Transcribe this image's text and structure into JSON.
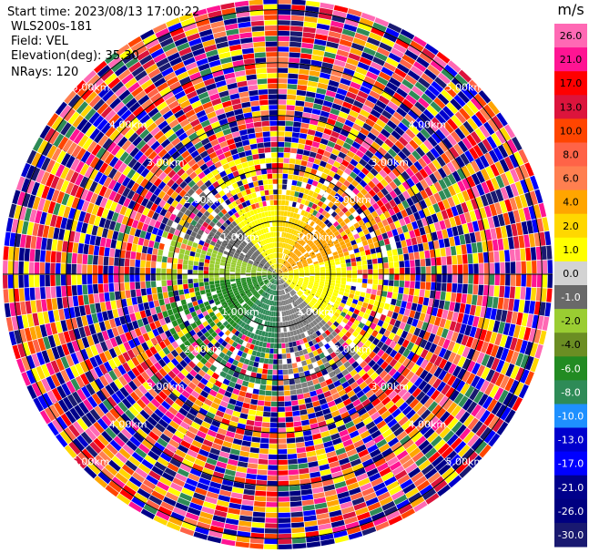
{
  "header": {
    "start_time": "Start time: 2023/08/13 17:00:22",
    "instrument": "WLS200s-181",
    "field": "Field: VEL",
    "elevation": "Elevation(deg): 35.30",
    "nrays": "NRays: 120"
  },
  "chart_data": {
    "type": "heatmap",
    "projection": "polar-ppi",
    "range_rings_km": [
      1,
      2,
      3,
      4,
      5
    ],
    "ring_labels": [
      "1.00km",
      "2.00km",
      "3.00km",
      "4.00km",
      "5.00km"
    ],
    "max_range_km": 5.2,
    "n_rays": 120,
    "n_gates": 52,
    "colorbar": {
      "unit": "m/s",
      "ticks": [
        "26.0",
        "21.0",
        "17.0",
        "13.0",
        "10.0",
        "8.0",
        "6.0",
        "4.0",
        "2.0",
        "1.0",
        "0.0",
        "-1.0",
        "-2.0",
        "-4.0",
        "-6.0",
        "-8.0",
        "-10.0",
        "-13.0",
        "-17.0",
        "-21.0",
        "-26.0",
        "-30.0"
      ],
      "colors": [
        "#ff69b4",
        "#ff1493",
        "#ff0000",
        "#dc143c",
        "#ff4500",
        "#ff6347",
        "#ff7f50",
        "#ffa500",
        "#ffd700",
        "#ffff00",
        "#d3d3d3",
        "#696969",
        "#9acd32",
        "#6b8e23",
        "#228b22",
        "#2e8b57",
        "#1e90ff",
        "#0000cd",
        "#0000ff",
        "#00008b",
        "#000080",
        "#191970"
      ]
    },
    "near_field_sectors": [
      {
        "az_from": 0,
        "az_to": 30,
        "color": "#ffd700"
      },
      {
        "az_from": 30,
        "az_to": 75,
        "color": "#ffa500"
      },
      {
        "az_from": 75,
        "az_to": 135,
        "color": "#ffff00"
      },
      {
        "az_from": 135,
        "az_to": 180,
        "color": "#808080"
      },
      {
        "az_from": 180,
        "az_to": 220,
        "color": "#2e8b57"
      },
      {
        "az_from": 220,
        "az_to": 265,
        "color": "#228b22"
      },
      {
        "az_from": 265,
        "az_to": 290,
        "color": "#9acd32"
      },
      {
        "az_from": 290,
        "az_to": 320,
        "color": "#696969"
      },
      {
        "az_from": 320,
        "az_to": 360,
        "color": "#ffff00"
      }
    ]
  }
}
